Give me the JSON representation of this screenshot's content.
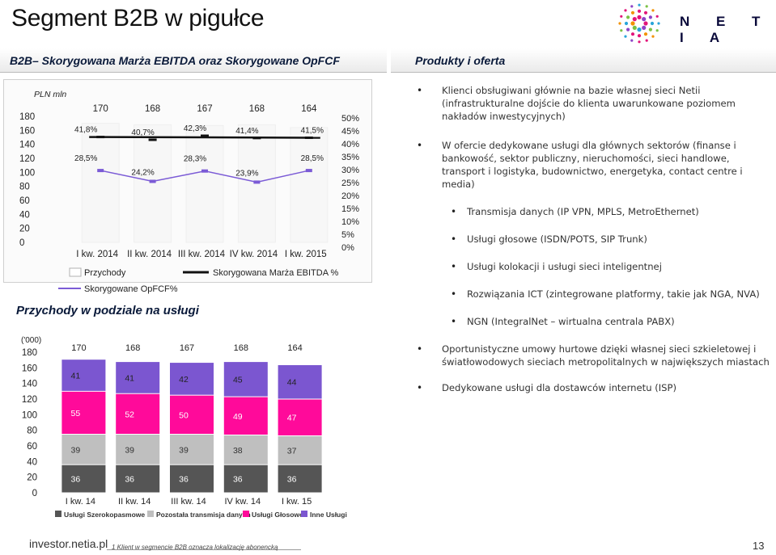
{
  "header": {
    "title": "Segment B2B w pigułce",
    "logo_text": "N E T I A"
  },
  "left_heading": "B2B– Skorygowana Marża EBITDA oraz Skorygowane OpFCF",
  "right_heading": "Produkty i oferta",
  "sub_heading": "Przychody w podziale na usługi",
  "footer": {
    "site": "investor.netia.pl",
    "note": "1  Klient w segmencie B2B oznacza lokalizację abonencką",
    "page": "13"
  },
  "colors": {
    "bar_top": "#9a9a9a",
    "line": "#111111",
    "marker": "#7b5bd6",
    "szerokopasmowe": "#555555",
    "pozostala": "#bfbfbf",
    "glosowe": "#ff0a9a",
    "inne": "#7b56d0"
  },
  "chart_data": [
    {
      "type": "line",
      "unit_label": "PLN mln",
      "categories": [
        "I kw. 2014",
        "II kw. 2014",
        "III kw. 2014",
        "IV kw. 2014",
        "I kw. 2015"
      ],
      "y_left_ticks": [
        "180",
        "160",
        "140",
        "120",
        "100",
        "80",
        "60",
        "40",
        "20",
        "0"
      ],
      "y_right_ticks": [
        "50%",
        "45%",
        "40%",
        "35%",
        "30%",
        "25%",
        "20%",
        "15%",
        "10%",
        "5%",
        "0%"
      ],
      "ylim_left": [
        0,
        180
      ],
      "ylim_right": [
        0,
        50
      ],
      "series": [
        {
          "name": "Przychody",
          "kind": "bar",
          "values": [
            170,
            168,
            167,
            168,
            164
          ],
          "labels": [
            "170",
            "168",
            "167",
            "168",
            "164"
          ]
        },
        {
          "name": "Skorygowana Marża EBITDA %",
          "kind": "line",
          "values": [
            41.8,
            40.7,
            42.3,
            41.4,
            41.5
          ],
          "labels": [
            "41,8%",
            "40,7%",
            "42,3%",
            "41,4%",
            "41,5%"
          ]
        },
        {
          "name": "Skorygowane OpFCF%",
          "kind": "line",
          "values": [
            28.5,
            24.2,
            28.3,
            23.9,
            28.5
          ],
          "labels": [
            "28,5%",
            "24,2%",
            "28,3%",
            "23,9%",
            "28,5%"
          ]
        }
      ],
      "legend": [
        "Przychody",
        "Skorygowana Marża EBITDA %",
        "Skorygowane OpFCF%"
      ]
    },
    {
      "type": "bar",
      "stacked": true,
      "unit_label": "('000)",
      "categories": [
        "I kw. 14",
        "II kw. 14",
        "III kw. 14",
        "IV kw. 14",
        "I kw. 15"
      ],
      "y_ticks": [
        "180",
        "160",
        "140",
        "120",
        "100",
        "80",
        "60",
        "40",
        "20",
        "0"
      ],
      "ylim": [
        0,
        180
      ],
      "totals": [
        "170",
        "168",
        "167",
        "168",
        "164"
      ],
      "series": [
        {
          "name": "Usługi Szerokopasmowe",
          "values": [
            36,
            36,
            36,
            36,
            36
          ]
        },
        {
          "name": "Pozostała transmisja danych",
          "values": [
            39,
            39,
            39,
            38,
            37
          ]
        },
        {
          "name": "Usługi Głosowe",
          "values": [
            55,
            52,
            50,
            49,
            47
          ]
        },
        {
          "name": "Inne Usługi",
          "values": [
            41,
            41,
            42,
            45,
            44
          ]
        }
      ],
      "legend": [
        "Usługi Szerokopasmowe",
        "Pozostała transmisja danych",
        "Usługi Głosowe",
        "Inne Usługi"
      ]
    }
  ],
  "offer": {
    "items": [
      {
        "level": 1,
        "text": "Klienci obsługiwani głównie na bazie własnej sieci Netii (infrastrukturalne dojście do klienta uwarunkowane poziomem nakładów inwestycyjnych)"
      },
      {
        "level": 1,
        "text": "W ofercie dedykowane usługi dla głównych sektorów  (finanse i bankowość,  sektor publiczny, nieruchomości, sieci handlowe, transport i logistyka, budownictwo, energetyka, contact centre i media)"
      },
      {
        "level": 2,
        "text": "Transmisja danych (IP VPN,  MPLS,  MetroEthernet)"
      },
      {
        "level": 2,
        "text": "Usługi głosowe (ISDN/POTS, SIP Trunk)"
      },
      {
        "level": 2,
        "text": "Usługi kolokacji i usługi sieci inteligentnej"
      },
      {
        "level": 2,
        "text": "Rozwiązania ICT (zintegrowane platformy, takie jak NGA, NVA)"
      },
      {
        "level": 2,
        "text": "NGN (IntegralNet  –  wirtualna centrala PABX)"
      },
      {
        "level": 1,
        "text": "Oportunistyczne umowy hurtowe dzięki własnej sieci szkieletowej i światłowodowych sieciach metropolitalnych w największych miastach"
      },
      {
        "level": 1,
        "text": "Dedykowane usługi dla dostawców internetu (ISP)"
      }
    ]
  }
}
